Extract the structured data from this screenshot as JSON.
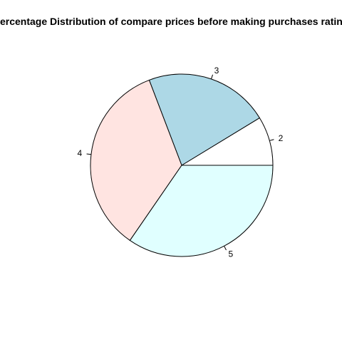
{
  "chart_data": {
    "type": "pie",
    "title": "Percentage Distribution of compare prices before making purchases rating",
    "clockwise": false,
    "start_angle_deg": 0,
    "slices": [
      {
        "label": "2",
        "value": 8.7,
        "color": "#ffffff"
      },
      {
        "label": "3",
        "value": 22.1,
        "color": "#add8e6"
      },
      {
        "label": "4",
        "value": 34.6,
        "color": "#ffe4e1"
      },
      {
        "label": "5",
        "value": 34.6,
        "color": "#e0ffff"
      }
    ]
  }
}
